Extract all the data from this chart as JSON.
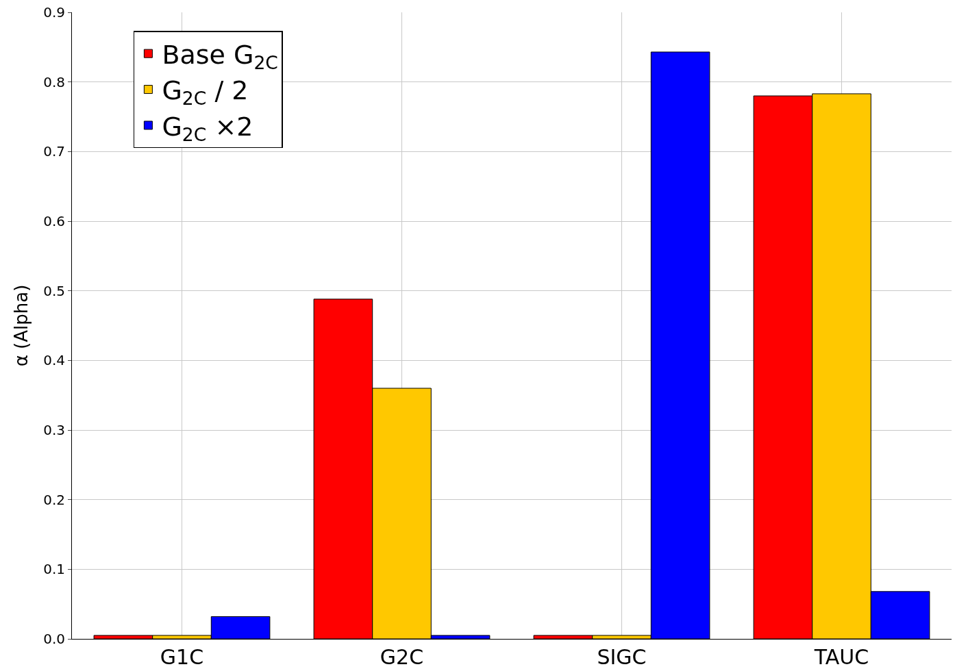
{
  "chart_data": {
    "type": "bar",
    "ylabel": "α (Alpha)",
    "categories": [
      "G1C",
      "G2C",
      "SIGC",
      "TAUC"
    ],
    "series": [
      {
        "name": "Base G$_{2C}$",
        "color": "#ff0000",
        "values": [
          0.005,
          0.488,
          0.005,
          0.78
        ]
      },
      {
        "name": "G$_{2C}$ / 2",
        "color": "#ffc800",
        "values": [
          0.005,
          0.36,
          0.005,
          0.783
        ]
      },
      {
        "name": "G$_{2C}$ ×2",
        "color": "#0000ff",
        "values": [
          0.032,
          0.005,
          0.843,
          0.068
        ]
      }
    ],
    "ylim": [
      0,
      0.9
    ],
    "yticks": [
      {
        "value": 0,
        "label": "0.0"
      },
      0.1,
      0.2,
      0.3,
      0.4,
      0.5,
      0.6,
      0.7,
      0.8,
      0.9
    ],
    "grid": true,
    "legend": "top left"
  }
}
